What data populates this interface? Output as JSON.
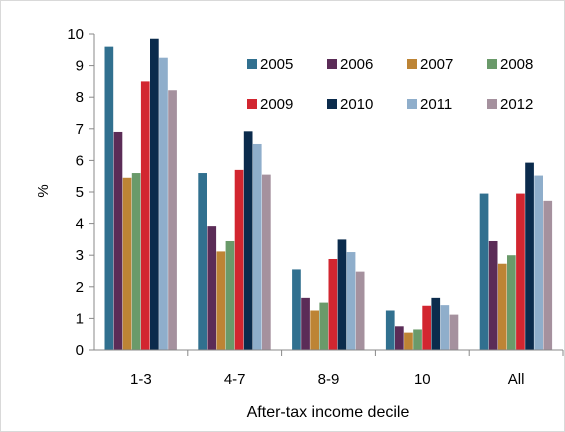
{
  "chart_data": {
    "type": "bar",
    "title": "",
    "xlabel": "After-tax income decile",
    "ylabel": "%",
    "ylim": [
      0,
      10
    ],
    "yticks": [
      0,
      1,
      2,
      3,
      4,
      5,
      6,
      7,
      8,
      9,
      10
    ],
    "grid": false,
    "legend_position": "top-right",
    "categories": [
      "1-3",
      "4-7",
      "8-9",
      "10",
      "All"
    ],
    "series": [
      {
        "name": "2005",
        "color": "#31708f",
        "values": [
          9.6,
          5.6,
          2.55,
          1.25,
          4.95
        ]
      },
      {
        "name": "2006",
        "color": "#5b2c57",
        "values": [
          6.9,
          3.92,
          1.65,
          0.75,
          3.45
        ]
      },
      {
        "name": "2007",
        "color": "#bd8435",
        "values": [
          5.45,
          3.12,
          1.25,
          0.55,
          2.73
        ]
      },
      {
        "name": "2008",
        "color": "#6a9a6a",
        "values": [
          5.6,
          3.45,
          1.5,
          0.65,
          3.0
        ]
      },
      {
        "name": "2009",
        "color": "#d22630",
        "values": [
          8.5,
          5.7,
          2.88,
          1.4,
          4.95
        ]
      },
      {
        "name": "2010",
        "color": "#0b2b4c",
        "values": [
          9.85,
          6.92,
          3.5,
          1.65,
          5.93
        ]
      },
      {
        "name": "2011",
        "color": "#8faecb",
        "values": [
          9.25,
          6.52,
          3.1,
          1.42,
          5.52
        ]
      },
      {
        "name": "2012",
        "color": "#a5919e",
        "values": [
          8.22,
          5.55,
          2.48,
          1.12,
          4.72
        ]
      }
    ]
  }
}
